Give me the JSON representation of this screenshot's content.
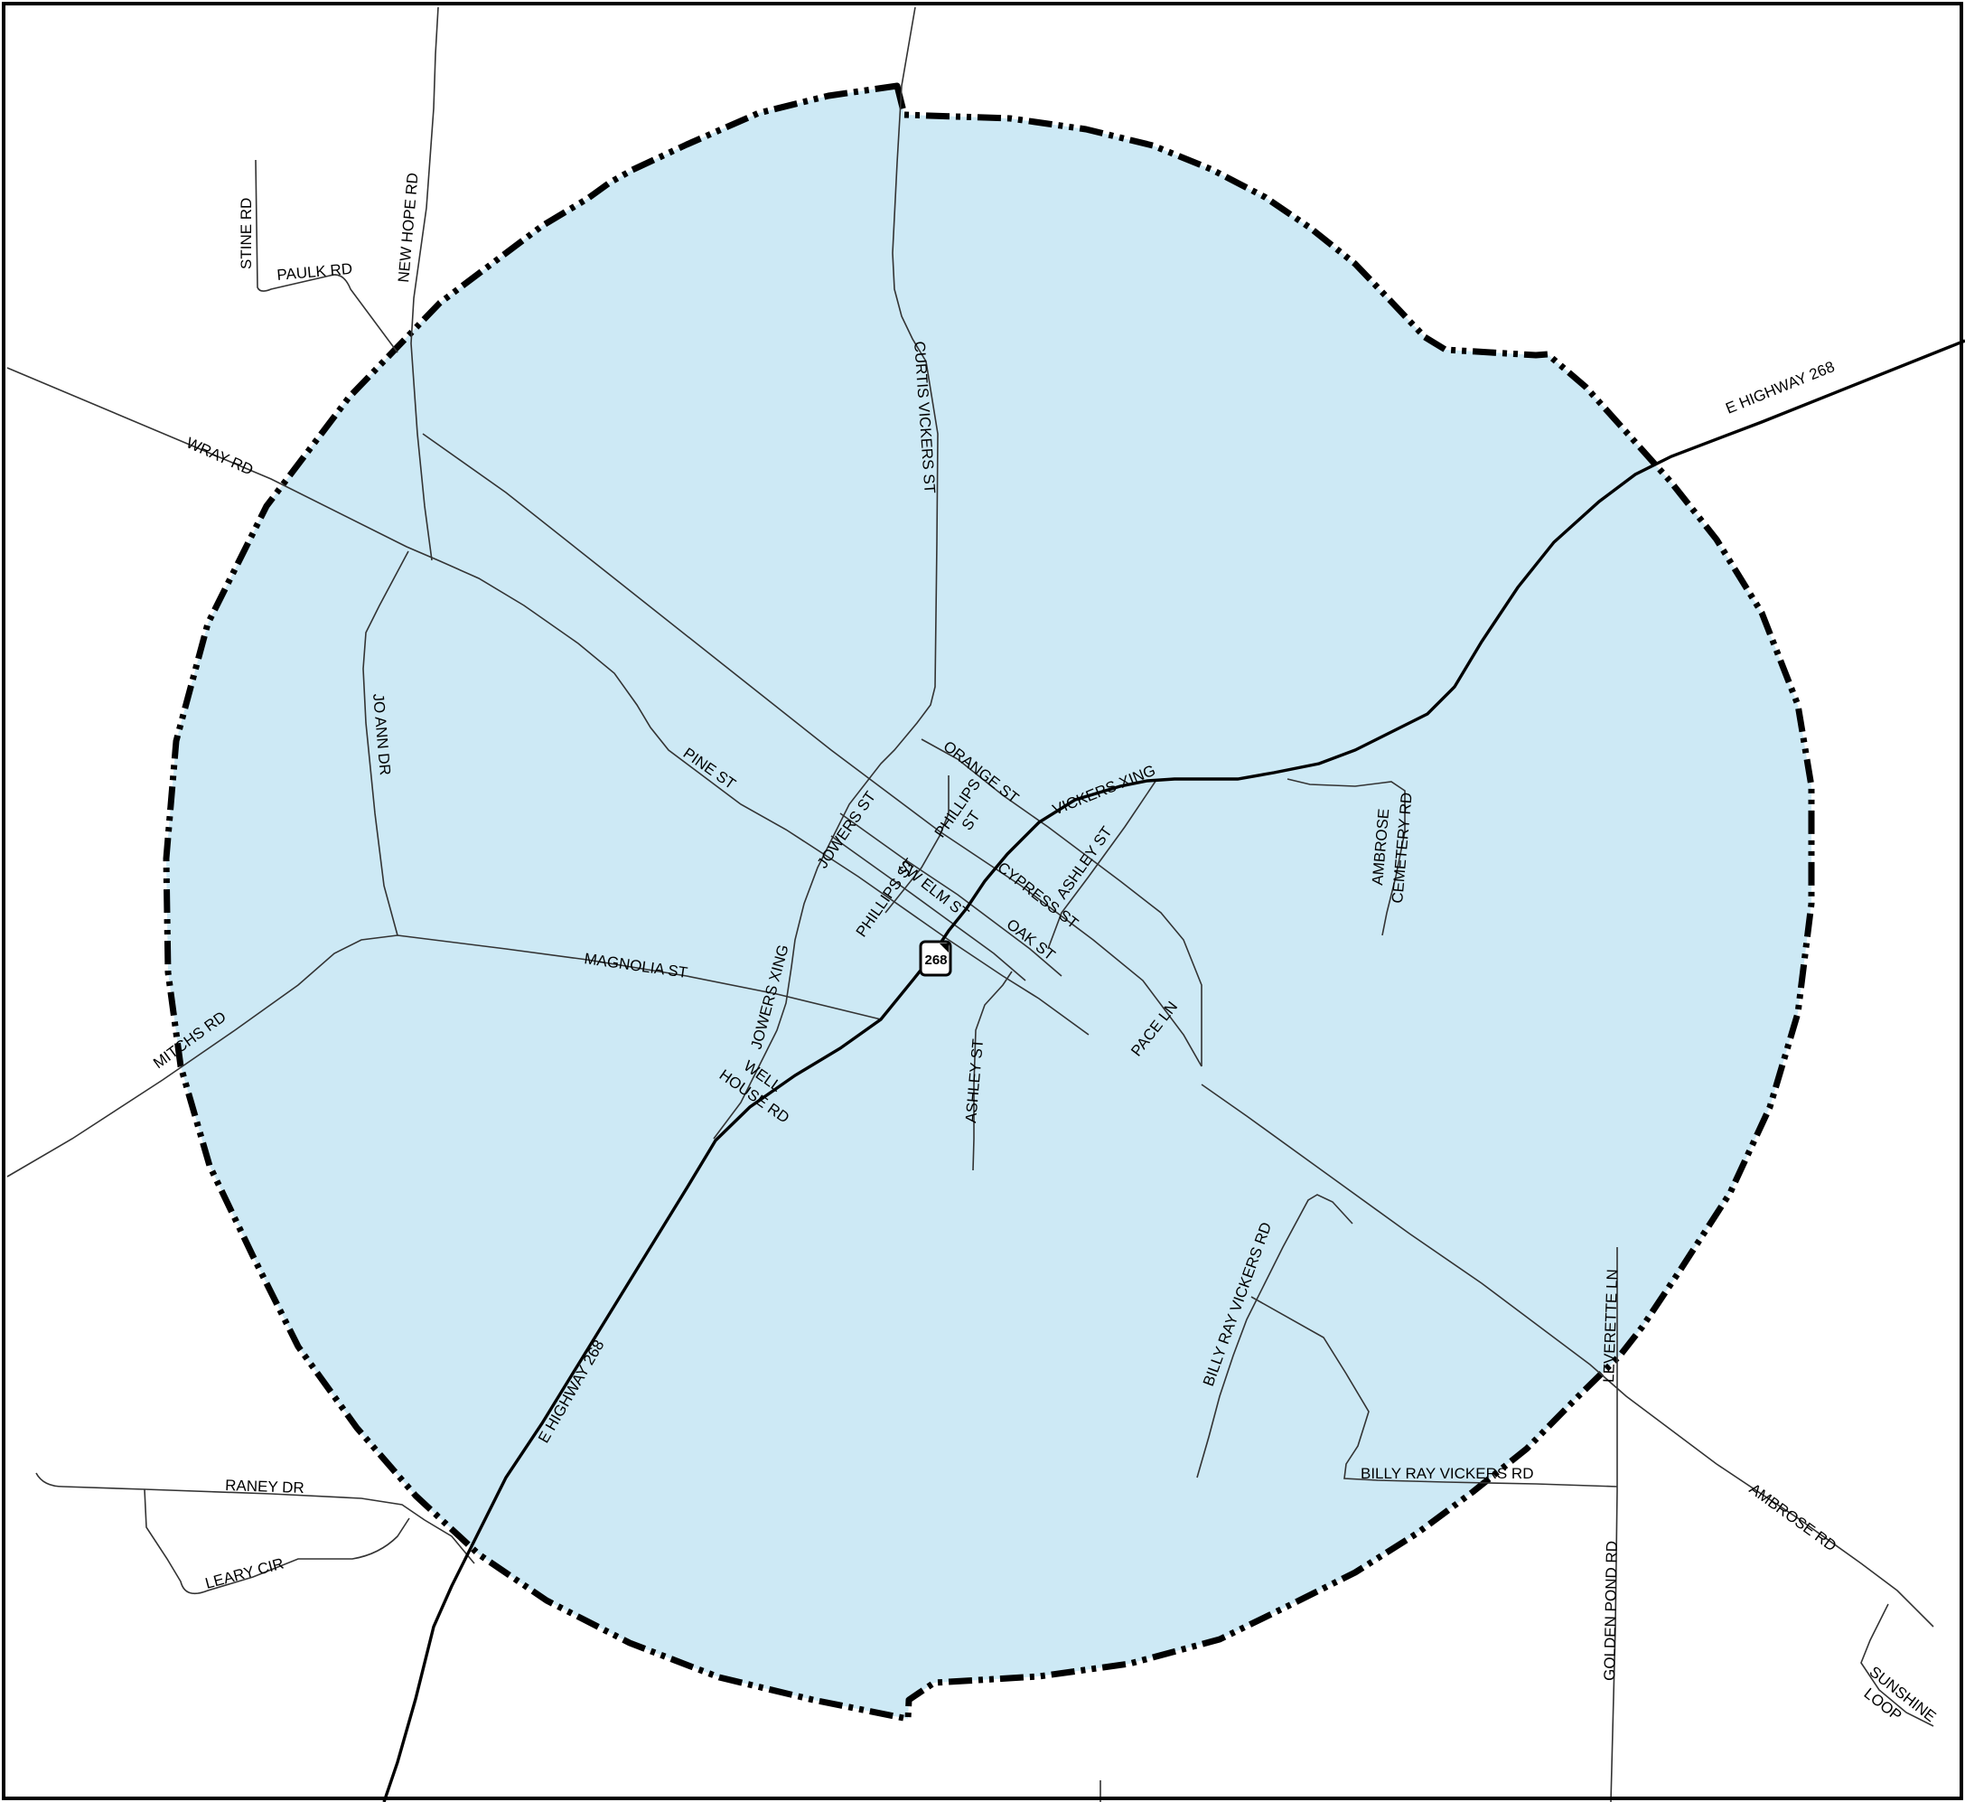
{
  "colors": {
    "area_fill": "#cde9f5",
    "boundary": "#000000",
    "roads": "#333333",
    "background": "#ffffff"
  },
  "highway_shield": {
    "number": "268",
    "icon": "state-route-shield-icon"
  },
  "labels": {
    "stine_rd": "STINE RD",
    "paulk_rd": "PAULK RD",
    "new_hope_rd": "NEW HOPE RD",
    "wray_rd": "WRAY RD",
    "curtis_vickers_st": "CURTIS VICKERS ST",
    "e_highway_268_ne": "E HIGHWAY 268",
    "jo_ann_dr": "JO ANN DR",
    "pine_st": "PINE ST",
    "orange_st": "ORANGE ST",
    "vickers_xing": "VICKERS XING",
    "phillips_st_north_1": "PHILLIPS",
    "phillips_st_north_2": "ST",
    "jowers_st": "JOWERS ST",
    "ashley_st_north": "ASHLEY ST",
    "ambrose_cemetery_rd_1": "AMBROSE",
    "ambrose_cemetery_rd_2": "CEMETERY RD",
    "phillips_st_south": "PHILLIPS ST",
    "sw_elm_st": "SW ELM ST",
    "cypress_st": "CYPRESS ST",
    "oak_st": "OAK ST",
    "magnolia_st": "MAGNOLIA ST",
    "jowers_xing": "JOWERS XING",
    "mitchs_rd": "MITCHS RD",
    "well_house_rd_1": "WELL",
    "well_house_rd_2": "HOUSE RD",
    "ashley_st_south": "ASHLEY ST",
    "pace_ln": "PACE LN",
    "billy_ray_vickers_rd_north": "BILLY RAY VICKERS RD",
    "leverette_ln": "LEVERETTE LN",
    "e_highway_268_sw": "E HIGHWAY 268",
    "billy_ray_vickers_rd_south": "BILLY RAY VICKERS RD",
    "raney_dr": "RANEY DR",
    "leary_cir": "LEARY CIR",
    "ambrose_rd": "AMBROSE RD",
    "golden_pond_rd": "GOLDEN POND RD",
    "sunshine_loop_1": "SUNSHINE",
    "sunshine_loop_2": "LOOP"
  }
}
